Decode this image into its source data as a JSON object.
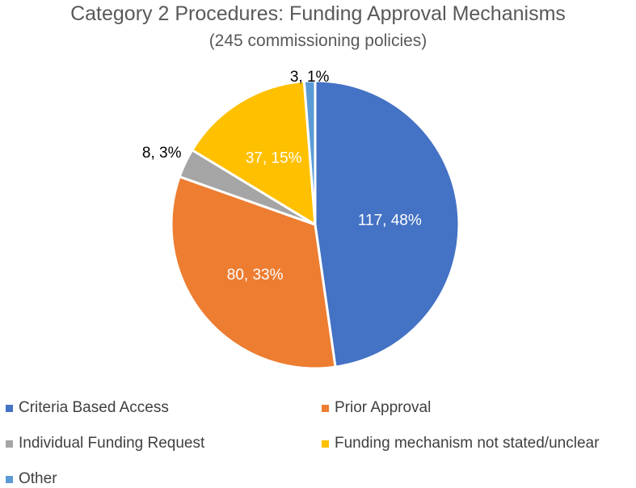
{
  "chart_data": {
    "type": "pie",
    "title": "Category 2 Procedures: Funding Approval Mechanisms",
    "subtitle": "(245 commissioning policies)",
    "legend_position": "bottom",
    "slices": [
      {
        "name": "Criteria Based Access",
        "value": 117,
        "label": "117, 48%",
        "color": "#4472C4"
      },
      {
        "name": "Prior Approval",
        "value": 80,
        "label": "80, 33%",
        "color": "#ED7D31"
      },
      {
        "name": "Individual Funding Request",
        "value": 8,
        "label": "8, 3%",
        "color": "#A5A5A5"
      },
      {
        "name": "Funding mechanism not stated/unclear",
        "value": 37,
        "label": "37, 15%",
        "color": "#FFC000"
      },
      {
        "name": "Other",
        "value": 3,
        "label": "3, 1%",
        "color": "#5B9BD5"
      }
    ]
  }
}
